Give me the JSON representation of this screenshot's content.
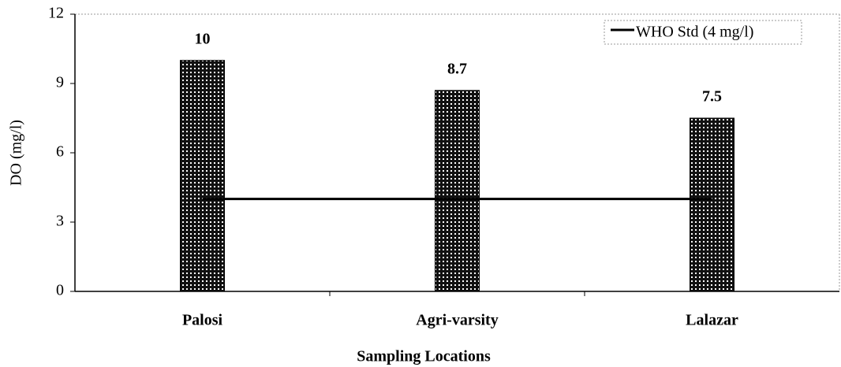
{
  "chart_data": {
    "type": "bar",
    "x_label": "Sampling Locations",
    "y_label": "DO (mg/l)",
    "categories": [
      "Palosi",
      "Agri-varsity",
      "Lalazar"
    ],
    "values": [
      10,
      8.7,
      7.5
    ],
    "color": "#000000",
    "lines": [
      {
        "name": "WHO Std (4 mg/l)",
        "color": "#000000",
        "values": [
          4,
          4,
          4
        ]
      }
    ],
    "ylim": [
      0,
      12
    ],
    "yticks": [
      0,
      3,
      6,
      9,
      12
    ],
    "legend": "upper right",
    "grid": false
  }
}
